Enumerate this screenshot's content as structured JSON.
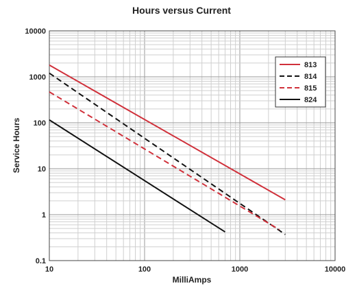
{
  "chart_data": {
    "type": "line",
    "title": "Hours versus Current",
    "xlabel": "MilliAmps",
    "ylabel": "Service Hours",
    "x_scale": "log",
    "y_scale": "log",
    "xlim": [
      10,
      10000
    ],
    "ylim": [
      0.1,
      10000
    ],
    "x_ticks": [
      "10",
      "100",
      "1000",
      "10000"
    ],
    "y_ticks": [
      "0.1",
      "1",
      "10",
      "100",
      "1000",
      "10000"
    ],
    "grid": true,
    "legend_position": "top-right",
    "series": [
      {
        "name": "813",
        "color": "#d0303a",
        "style": "solid",
        "x": [
          10,
          3000
        ],
        "y": [
          1800,
          2.1
        ]
      },
      {
        "name": "814",
        "color": "#111111",
        "style": "dashed",
        "x": [
          10,
          3000
        ],
        "y": [
          1200,
          0.37
        ]
      },
      {
        "name": "815",
        "color": "#d0303a",
        "style": "dashed",
        "x": [
          10,
          2600
        ],
        "y": [
          470,
          0.47
        ]
      },
      {
        "name": "824",
        "color": "#111111",
        "style": "solid",
        "x": [
          10,
          700
        ],
        "y": [
          115,
          0.42
        ]
      }
    ]
  }
}
